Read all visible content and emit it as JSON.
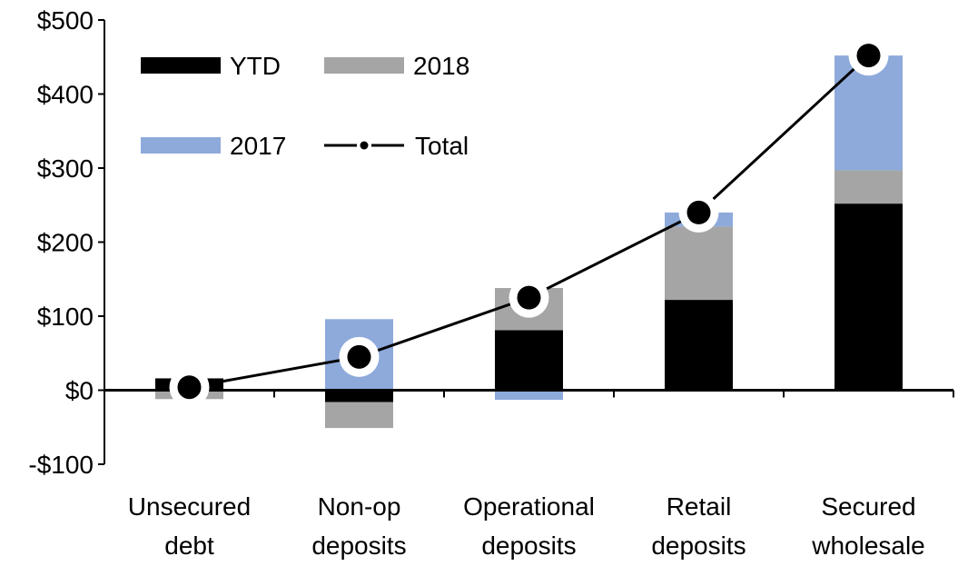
{
  "chart_data": {
    "type": "bar",
    "stacked": true,
    "title": "",
    "xlabel": "",
    "ylabel": "",
    "ylim": [
      -100,
      500
    ],
    "yticks": [
      -100,
      0,
      100,
      200,
      300,
      400,
      500
    ],
    "ytick_labels": [
      "-$100",
      "$0",
      "$100",
      "$200",
      "$300",
      "$400",
      "$500"
    ],
    "grid": false,
    "legend_position": "top-left",
    "categories": [
      [
        "Unsecured",
        "debt"
      ],
      [
        "Non-op",
        "deposits"
      ],
      [
        "Operational",
        "deposits"
      ],
      [
        "Retail",
        "deposits"
      ],
      [
        "Secured",
        "wholesale"
      ]
    ],
    "series": [
      {
        "name": "YTD",
        "type": "bar",
        "color": "#000000",
        "values": [
          16,
          -16,
          81,
          122,
          252
        ]
      },
      {
        "name": "2018",
        "type": "bar",
        "color": "#a5a5a5",
        "values": [
          -12,
          -35,
          57,
          99,
          45
        ]
      },
      {
        "name": "2017",
        "type": "bar",
        "color": "#8eaadb",
        "values": [
          0,
          96,
          -13,
          19,
          155
        ]
      },
      {
        "name": "Total",
        "type": "line",
        "color": "#000000",
        "values": [
          4,
          45,
          125,
          240,
          452
        ]
      }
    ]
  }
}
